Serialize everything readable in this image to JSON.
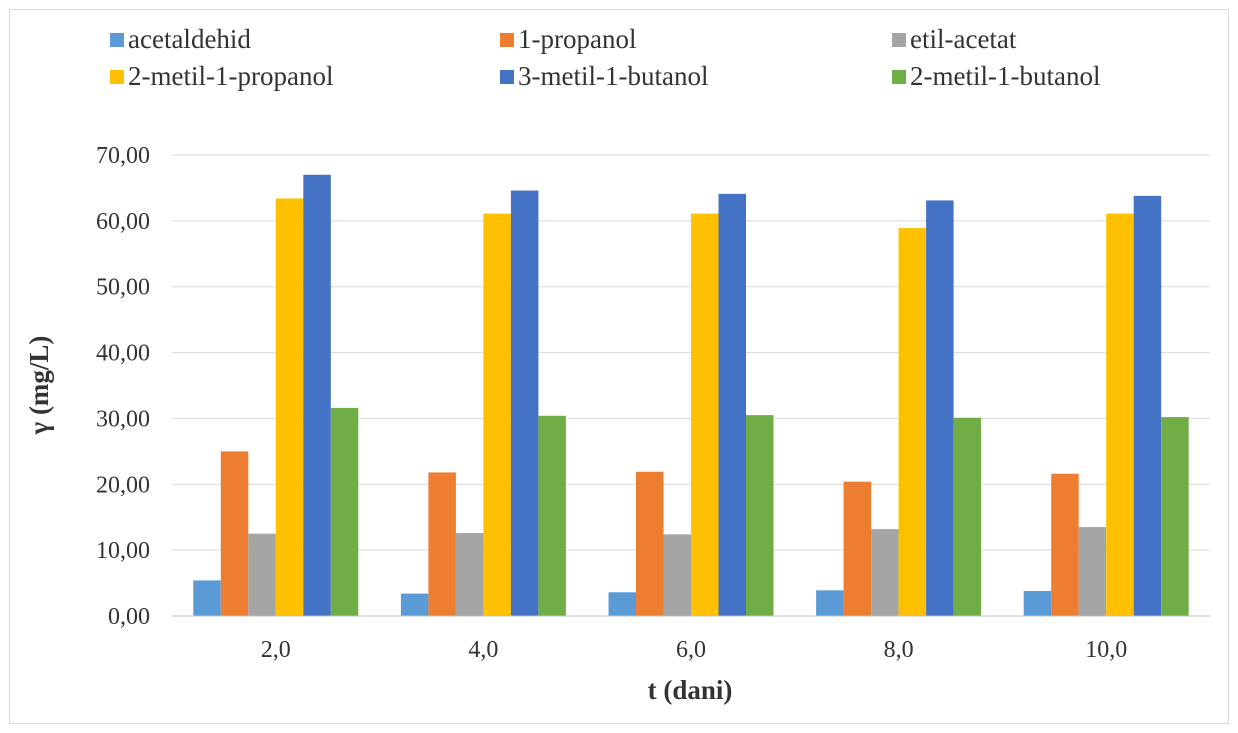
{
  "chart_data": {
    "type": "bar",
    "categories": [
      "2,0",
      "4,0",
      "6,0",
      "8,0",
      "10,0"
    ],
    "series": [
      {
        "name": "acetaldehid",
        "color": "#5B9BD5",
        "values": [
          5.4,
          3.4,
          3.6,
          3.9,
          3.8
        ]
      },
      {
        "name": "1-propanol",
        "color": "#ED7D31",
        "values": [
          25.0,
          21.8,
          21.9,
          20.4,
          21.6
        ]
      },
      {
        "name": "etil-acetat",
        "color": "#A5A5A5",
        "values": [
          12.5,
          12.6,
          12.4,
          13.2,
          13.5
        ]
      },
      {
        "name": "2-metil-1-propanol",
        "color": "#FFC000",
        "values": [
          63.4,
          61.1,
          61.1,
          58.9,
          61.1
        ]
      },
      {
        "name": "3-metil-1-butanol",
        "color": "#4472C4",
        "values": [
          67.0,
          64.6,
          64.1,
          63.1,
          63.8
        ]
      },
      {
        "name": "2-metil-1-butanol",
        "color": "#70AD47",
        "values": [
          31.6,
          30.4,
          30.5,
          30.1,
          30.2
        ]
      }
    ],
    "ylim": [
      0,
      70
    ],
    "yticks": [
      "0,00",
      "10,00",
      "20,00",
      "30,00",
      "40,00",
      "50,00",
      "60,00",
      "70,00"
    ],
    "xlabel": "t (dani)",
    "ylabel": "γ (mg/L)",
    "grid": true,
    "legend_position": "top"
  }
}
